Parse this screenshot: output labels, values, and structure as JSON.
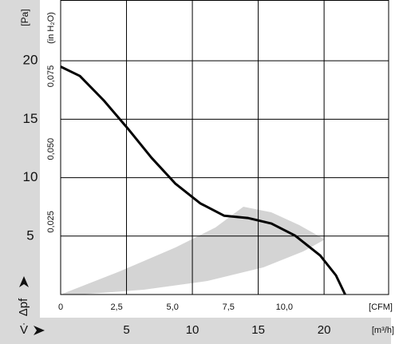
{
  "chart_data": {
    "type": "line",
    "y_label": "[Pa]",
    "y2_label": "(in H₂O)",
    "y_axis_symbol": "Δpf",
    "x_label": "[m³/h]",
    "x_axis_symbol": "V̇",
    "x2_label": "[CFM]",
    "x": [
      0,
      1.46,
      3.28,
      5.1,
      6.9,
      8.7,
      10.6,
      12.4,
      14.2,
      16.0,
      17.8,
      19.7,
      20.9,
      21.6
    ],
    "series": [
      {
        "color": "#000000",
        "values": [
          19.5,
          18.7,
          16.6,
          14.2,
          11.7,
          9.5,
          7.8,
          6.75,
          6.55,
          6.07,
          5.04,
          3.34,
          1.64,
          0
        ]
      }
    ],
    "xlim": [
      0,
      24.9
    ],
    "xticks": [
      5,
      10,
      15,
      20
    ],
    "ylim": [
      0,
      25.2
    ],
    "yticks": [
      5,
      10,
      15,
      20
    ],
    "x2lim": [
      0,
      14.66
    ],
    "x2ticks": [
      0,
      {
        "value": 2.5,
        "label": "2,5"
      },
      {
        "value": 5.0,
        "label": "5,0"
      },
      {
        "value": 7.5,
        "label": "7,5"
      },
      {
        "value": 10.0,
        "label": "10,0"
      }
    ],
    "y2lim": [
      0,
      0.1012
    ],
    "y2ticks": [
      {
        "value": 0.025,
        "label": "0,025"
      },
      {
        "value": 0.05,
        "label": "0,050"
      },
      {
        "value": 0.075,
        "label": "0,075"
      }
    ],
    "grid": true
  }
}
